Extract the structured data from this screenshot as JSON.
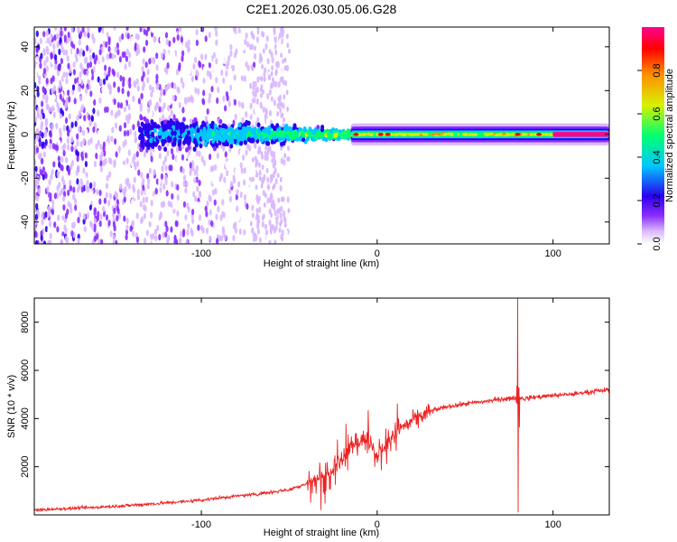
{
  "title": "C2E1.2026.030.05.06.G28",
  "chart_data": [
    {
      "type": "heatmap",
      "title": "C2E1.2026.030.05.06.G28",
      "xlabel": "Height of straight line (km)",
      "ylabel": "Frequency (Hz)",
      "xlim": [
        -195,
        132
      ],
      "ylim": [
        -50,
        49
      ],
      "x_ticks": [
        -100,
        0,
        100
      ],
      "y_ticks": [
        -40,
        -20,
        0,
        20,
        40
      ],
      "colorbar": {
        "label": "Normalized spectral amplitude",
        "range": [
          0,
          1
        ],
        "ticks": [
          0.0,
          0.2,
          0.4,
          0.6,
          0.8
        ],
        "tick_labels": [
          "0.0",
          "0.2",
          "0.4",
          "0.6",
          "0.8"
        ],
        "colormap": [
          "#ffffff",
          "#d9b8ff",
          "#8c2dff",
          "#2a00f0",
          "#00c8ff",
          "#00ff70",
          "#d8f000",
          "#ff9000",
          "#ff0000",
          "#ff0090"
        ]
      },
      "features": [
        {
          "desc": "scattered low-amplitude noise",
          "x_range": [
            -195,
            -50
          ],
          "y_range": [
            -50,
            49
          ],
          "amplitude": 0.15
        },
        {
          "desc": "noisy line band",
          "x_range": [
            -130,
            -15
          ],
          "y_center": 0,
          "y_halfwidth": 8,
          "amplitude": 0.4
        },
        {
          "desc": "clean carrier line",
          "x_range": [
            -15,
            132
          ],
          "y_center": 0,
          "y_halfwidth": 1.5,
          "amplitude": 0.75
        },
        {
          "desc": "peak segment",
          "x_range": [
            100,
            132
          ],
          "y_center": 0,
          "amplitude": 0.95
        }
      ]
    },
    {
      "type": "line",
      "xlabel": "Height of straight line (km)",
      "ylabel": "SNR (10 * v/v)",
      "xlim": [
        -195,
        132
      ],
      "ylim": [
        0,
        9000
      ],
      "x_ticks": [
        -100,
        0,
        100
      ],
      "y_ticks": [
        2000,
        4000,
        6000,
        8000
      ],
      "color": "#ee2222",
      "series": [
        {
          "name": "SNR",
          "x": [
            -195,
            -170,
            -150,
            -130,
            -110,
            -90,
            -70,
            -50,
            -40,
            -30,
            -20,
            -15,
            -10,
            -5,
            0,
            10,
            20,
            30,
            40,
            50,
            60,
            70,
            78,
            80,
            82,
            90,
            100,
            110,
            120,
            132
          ],
          "values": [
            200,
            280,
            350,
            450,
            550,
            700,
            850,
            1050,
            1300,
            1700,
            2300,
            2800,
            3100,
            3200,
            2500,
            3400,
            3900,
            4300,
            4500,
            4600,
            4700,
            4800,
            4850,
            8900,
            4800,
            4900,
            4950,
            5000,
            5100,
            5200
          ]
        }
      ],
      "annotations": [
        {
          "desc": "sharp spike and dip",
          "x": 80,
          "max": 9000,
          "min": 100
        }
      ]
    }
  ]
}
